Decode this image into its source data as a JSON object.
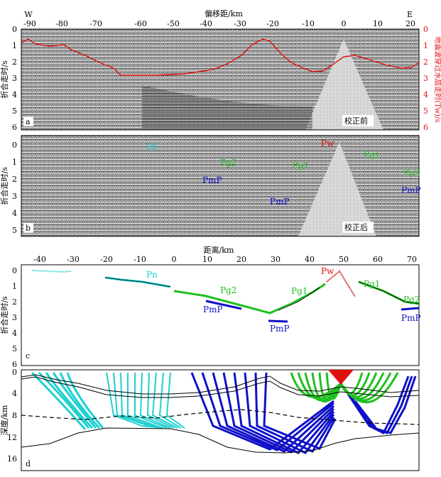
{
  "panel_a": {
    "top_axis_title": "偏移距/km",
    "x_ticks": [
      "-90",
      "-80",
      "-70",
      "-60",
      "-50",
      "-40",
      "-30",
      "-20",
      "-10",
      "0",
      "10",
      "20"
    ],
    "dir_w": "W",
    "dir_e": "E",
    "y_ticks": [
      "0",
      "1",
      "2",
      "3",
      "4",
      "5",
      "6"
    ],
    "y_label": "折合走时/s",
    "right_y_ticks": [
      "0",
      "1",
      "2",
      "3",
      "4",
      "5",
      "6"
    ],
    "right_y_label": "地震波穿过水层走时(Tw)/s",
    "letter": "a",
    "tag": "校正前"
  },
  "panel_b": {
    "y_ticks": [
      "0",
      "1",
      "2",
      "3",
      "4",
      "5"
    ],
    "y_label": "折合走时/s",
    "letter": "b",
    "tag": "校正后",
    "phases": [
      "Pn",
      "Pg2",
      "PmP",
      "PmP",
      "Pg1",
      "Pw",
      "Pg1",
      "Pg2",
      "PmP"
    ]
  },
  "panel_c": {
    "top_axis_title": "距离/km",
    "x_ticks": [
      "-40",
      "-30",
      "-20",
      "-10",
      "0",
      "10",
      "20",
      "30",
      "40",
      "50",
      "60",
      "70"
    ],
    "y_ticks": [
      "0",
      "1",
      "2",
      "3",
      "4",
      "5",
      "6"
    ],
    "y_label": "折合走时/s",
    "letter": "c",
    "phases": [
      "Pn",
      "Pg2",
      "PmP",
      "PmP",
      "Pg1",
      "Pw",
      "Pg1",
      "Pg2",
      "PmP"
    ]
  },
  "panel_d": {
    "y_ticks": [
      "0",
      "4",
      "8",
      "12",
      "16"
    ],
    "y_label": "深度/km",
    "letter": "d"
  },
  "colors": {
    "red": "#e01010",
    "blue": "#1010c8",
    "green": "#20c020",
    "cyan": "#20d0d0"
  }
}
